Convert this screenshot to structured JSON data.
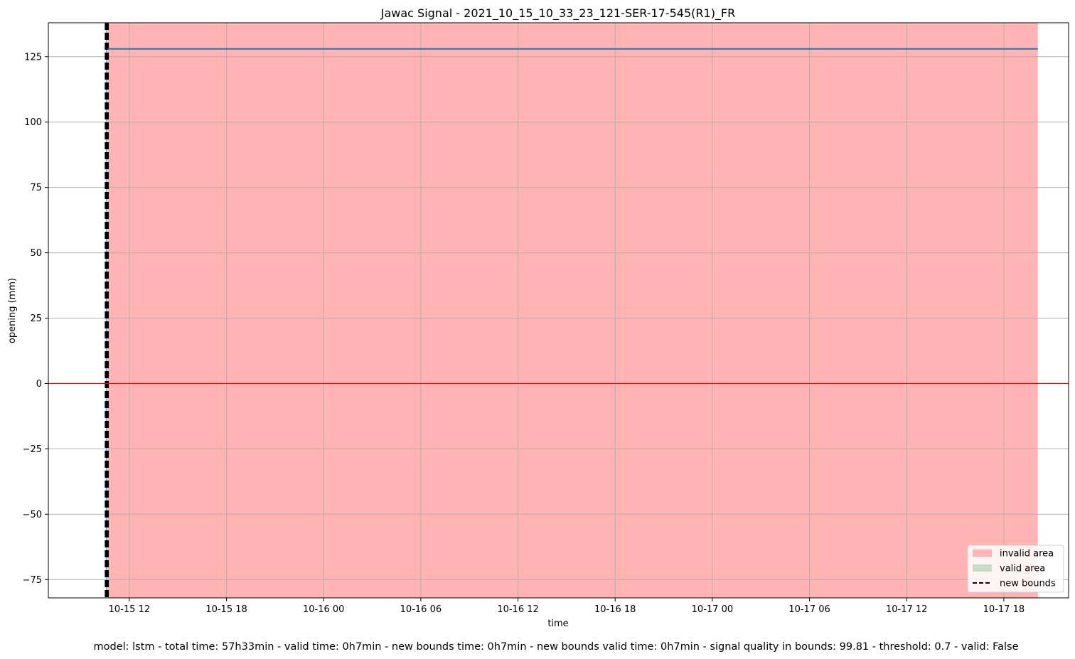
{
  "chart_data": {
    "type": "line",
    "title": "Jawac Signal - 2021_10_15_10_33_23_121-SER-17-545(R1)_FR",
    "xlabel": "time",
    "ylabel": "opening (mm)",
    "ylim": [
      -82,
      138
    ],
    "xlim": [
      "2021-10-15 07:00",
      "2021-10-17 22:00"
    ],
    "x_ticks": [
      "10-15 12",
      "10-15 18",
      "10-16 00",
      "10-16 06",
      "10-16 12",
      "10-16 18",
      "10-17 00",
      "10-17 06",
      "10-17 12",
      "10-17 18"
    ],
    "x_tick_times": [
      "2021-10-15 12:00",
      "2021-10-15 18:00",
      "2021-10-16 00:00",
      "2021-10-16 06:00",
      "2021-10-16 12:00",
      "2021-10-16 18:00",
      "2021-10-17 00:00",
      "2021-10-17 06:00",
      "2021-10-17 12:00",
      "2021-10-17 18:00"
    ],
    "y_ticks": [
      125,
      100,
      75,
      50,
      25,
      0,
      -25,
      -50,
      -75
    ],
    "y_tick_labels": [
      "125",
      "100",
      "75",
      "50",
      "25",
      "0",
      "−25",
      "−50",
      "−75"
    ],
    "grid": true,
    "legend_position": "lower-right",
    "legend": [
      {
        "label": "invalid area",
        "kind": "patch",
        "color": "#ffb3b3"
      },
      {
        "label": "valid area",
        "kind": "patch",
        "color": "#c9dbc5"
      },
      {
        "label": "new bounds",
        "kind": "dashed-line",
        "color": "#000000"
      }
    ],
    "series": [
      {
        "kind": "line",
        "color": "#1f77b4",
        "x": [
          "2021-10-15 10:40",
          "2021-10-17 20:06"
        ],
        "y": [
          128,
          128
        ]
      },
      {
        "kind": "hline",
        "color": "#ff0000",
        "y": 0
      }
    ],
    "spans": [
      {
        "label": "invalid area",
        "color": "#ffb3b3",
        "x0": "2021-10-15 10:40",
        "x1": "2021-10-17 20:06"
      }
    ],
    "vlines": [
      {
        "label": "new bounds",
        "color": "#000000",
        "style": "dashed",
        "x": "2021-10-15 10:33"
      },
      {
        "label": "new bounds",
        "color": "#000000",
        "style": "dashed",
        "x": "2021-10-15 10:40"
      }
    ],
    "footer": "model: lstm - total time: 57h33min - valid time: 0h7min - new bounds time: 0h7min - new bounds valid time: 0h7min - signal quality in bounds: 99.81 - threshold: 0.7 - valid: False"
  }
}
